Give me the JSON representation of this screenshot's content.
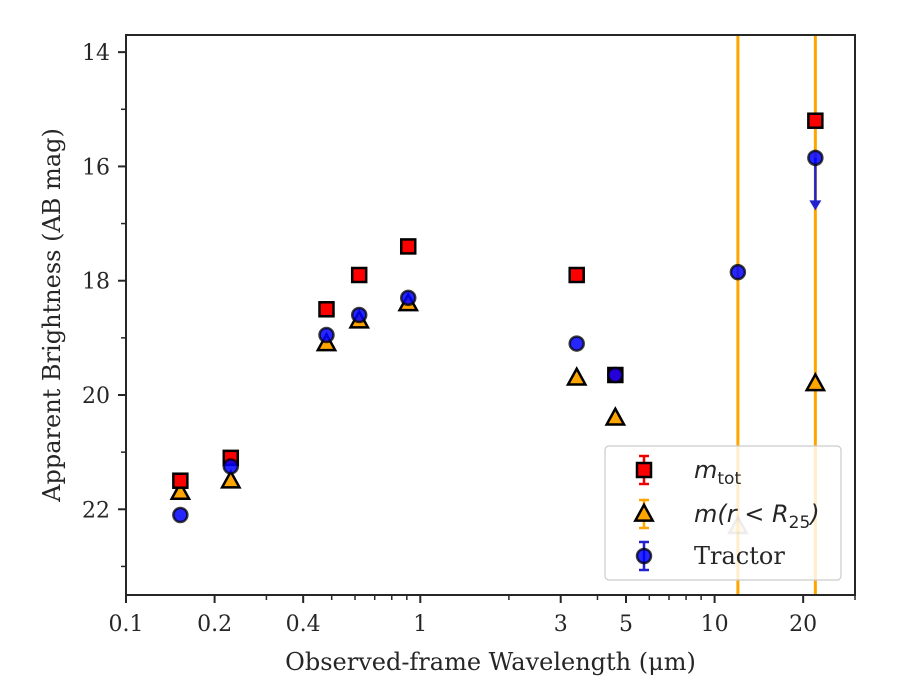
{
  "chart_data": {
    "type": "scatter",
    "xlabel": "Observed-frame Wavelength (μm)",
    "ylabel": "Apparent Brightness (AB mag)",
    "x_scale": "log",
    "xlim": [
      0.1,
      30
    ],
    "ylim": [
      23.5,
      13.7
    ],
    "y_inverted": true,
    "x_tick_labels": [
      "0.1",
      "0.2",
      "0.4",
      "1",
      "3",
      "5",
      "10",
      "20"
    ],
    "x_ticks": [
      0.1,
      0.2,
      0.4,
      1,
      3,
      5,
      10,
      20
    ],
    "y_tick_labels": [
      "14",
      "16",
      "18",
      "20",
      "22"
    ],
    "y_ticks": [
      14,
      16,
      18,
      20,
      22
    ],
    "grid": false,
    "legend_position": "bottom-right",
    "vertical_lines": [
      {
        "x": 12.0,
        "color": "#ffa500"
      },
      {
        "x": 22.0,
        "color": "#ffa500"
      }
    ],
    "series": [
      {
        "name": "m_tot",
        "legend_main": "m",
        "legend_sub": "tot",
        "marker": "square",
        "color": "#ff0000",
        "edge": "#000000",
        "x": [
          0.153,
          0.227,
          0.48,
          0.62,
          0.91,
          3.4,
          4.6,
          22.0
        ],
        "y": [
          21.5,
          21.1,
          18.5,
          17.9,
          17.4,
          17.9,
          19.65,
          15.2
        ]
      },
      {
        "name": "m(r < R25)",
        "legend_main": "m(r < R",
        "legend_sub": "25",
        "legend_close": ")",
        "marker": "triangle",
        "color": "#ffa500",
        "edge": "#000000",
        "x": [
          0.153,
          0.227,
          0.48,
          0.62,
          0.91,
          3.4,
          4.6,
          12.0,
          22.0
        ],
        "y": [
          21.7,
          21.5,
          19.1,
          18.7,
          18.4,
          19.7,
          20.4,
          22.3,
          19.8
        ]
      },
      {
        "name": "Tractor",
        "marker": "circle",
        "color": "#0000ff",
        "edge": "#000000",
        "x": [
          0.153,
          0.227,
          0.48,
          0.62,
          0.91,
          3.4,
          4.6,
          12.0,
          22.0
        ],
        "y": [
          22.1,
          21.25,
          18.95,
          18.6,
          18.3,
          19.1,
          19.65,
          17.85,
          15.85
        ],
        "upper_limit_index": 8,
        "upper_limit_to": 16.7
      }
    ]
  }
}
